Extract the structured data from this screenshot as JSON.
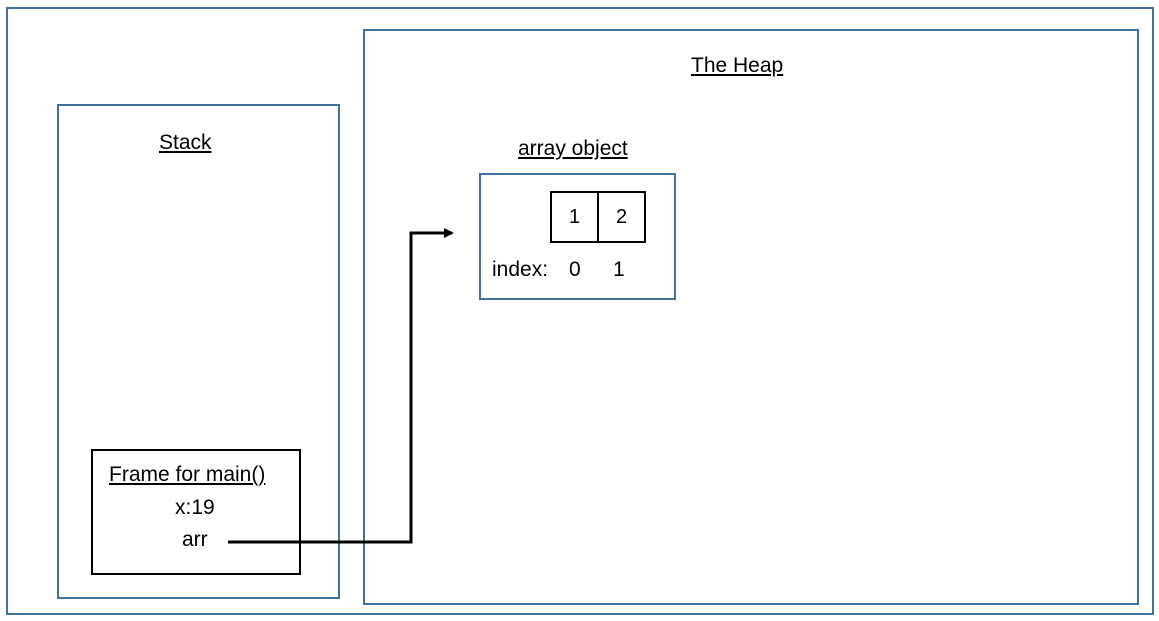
{
  "heap": {
    "title": "The Heap"
  },
  "stack": {
    "title": "Stack"
  },
  "array_object": {
    "title": "array object",
    "values": [
      "1",
      "2"
    ],
    "index_label": "index:",
    "indices": [
      "0",
      "1"
    ]
  },
  "frame": {
    "title": "Frame for main()",
    "var_x": "x:19",
    "var_arr": "arr"
  },
  "colors": {
    "region_border": "#41719c",
    "frame_border": "#000000",
    "arrow": "#000000"
  }
}
